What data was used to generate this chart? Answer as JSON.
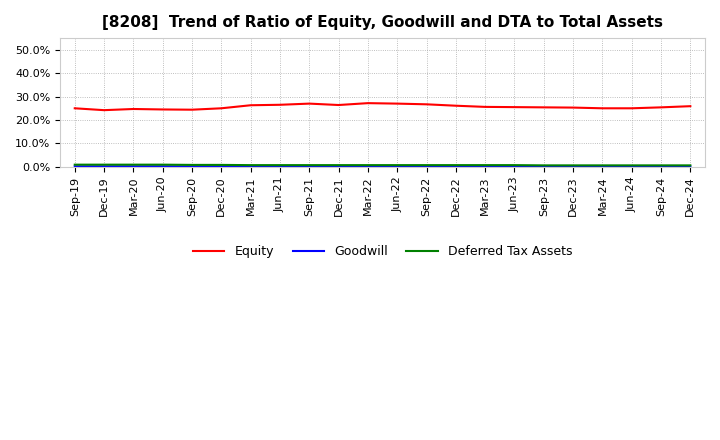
{
  "title": "[8208]  Trend of Ratio of Equity, Goodwill and DTA to Total Assets",
  "x_labels": [
    "Sep-19",
    "Dec-19",
    "Mar-20",
    "Jun-20",
    "Sep-20",
    "Dec-20",
    "Mar-21",
    "Jun-21",
    "Sep-21",
    "Dec-21",
    "Mar-22",
    "Jun-22",
    "Sep-22",
    "Dec-22",
    "Mar-23",
    "Jun-23",
    "Sep-23",
    "Dec-23",
    "Mar-24",
    "Jun-24",
    "Sep-24",
    "Dec-24"
  ],
  "equity": [
    0.25,
    0.242,
    0.247,
    0.245,
    0.244,
    0.25,
    0.263,
    0.265,
    0.27,
    0.264,
    0.272,
    0.27,
    0.267,
    0.261,
    0.256,
    0.255,
    0.254,
    0.253,
    0.25,
    0.25,
    0.254,
    0.259
  ],
  "goodwill": [
    0.002,
    0.002,
    0.002,
    0.002,
    0.001,
    0.001,
    0.001,
    0.001,
    0.001,
    0.001,
    0.001,
    0.001,
    0.001,
    0.001,
    0.001,
    0.001,
    0.001,
    0.001,
    0.001,
    0.001,
    0.001,
    0.001
  ],
  "dta": [
    0.009,
    0.009,
    0.009,
    0.009,
    0.008,
    0.008,
    0.007,
    0.007,
    0.007,
    0.007,
    0.007,
    0.007,
    0.007,
    0.007,
    0.007,
    0.007,
    0.006,
    0.006,
    0.006,
    0.006,
    0.006,
    0.006
  ],
  "equity_color": "#FF0000",
  "goodwill_color": "#0000FF",
  "dta_color": "#008000",
  "ylim": [
    0.0,
    0.55
  ],
  "yticks": [
    0.0,
    0.1,
    0.2,
    0.3,
    0.4,
    0.5
  ],
  "background_color": "#FFFFFF",
  "grid_color": "#AAAAAA",
  "legend_labels": [
    "Equity",
    "Goodwill",
    "Deferred Tax Assets"
  ],
  "title_fontsize": 11,
  "tick_fontsize": 8,
  "legend_fontsize": 9
}
